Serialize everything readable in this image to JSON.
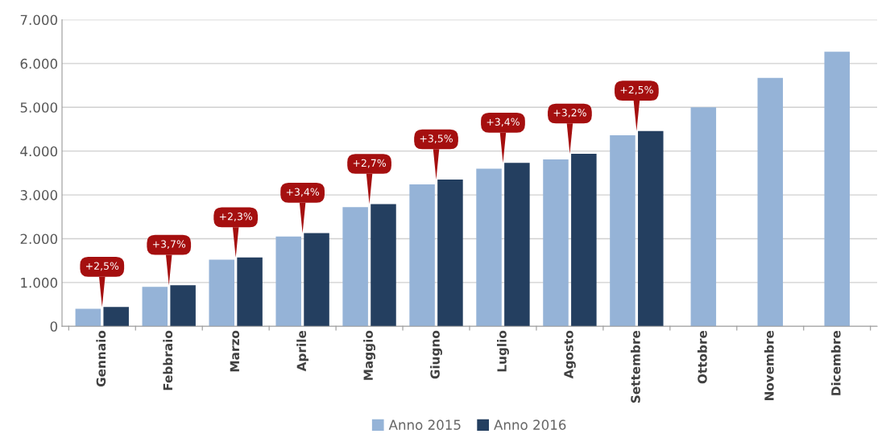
{
  "chart_data": {
    "type": "bar",
    "categories": [
      "Gennaio",
      "Febbraio",
      "Marzo",
      "Aprile",
      "Maggio",
      "Giugno",
      "Luglio",
      "Agosto",
      "Settembre",
      "Ottobre",
      "Novembre",
      "Dicembre"
    ],
    "series": [
      {
        "name": "Anno 2015",
        "color": "#95b3d7",
        "values": [
          400,
          900,
          1520,
          2050,
          2720,
          3240,
          3600,
          3810,
          4360,
          5000,
          5670,
          6270
        ]
      },
      {
        "name": "Anno 2016",
        "color": "#243f60",
        "values": [
          440,
          940,
          1570,
          2130,
          2790,
          3350,
          3730,
          3940,
          4460,
          null,
          null,
          null
        ]
      }
    ],
    "ylim": [
      0,
      7000
    ],
    "yticks": [
      {
        "value": 0,
        "label": "0"
      },
      {
        "value": 1000,
        "label": "1.000"
      },
      {
        "value": 2000,
        "label": "2.000"
      },
      {
        "value": 3000,
        "label": "3.000"
      },
      {
        "value": 4000,
        "label": "4.000"
      },
      {
        "value": 5000,
        "label": "5.000"
      },
      {
        "value": 6000,
        "label": "6.000"
      },
      {
        "value": 7000,
        "label": "7.000"
      }
    ],
    "annotations": [
      {
        "text": "+2,5%",
        "x": "Gennaio",
        "y": 440
      },
      {
        "text": "+3,7%",
        "x": "Febbraio",
        "y": 940
      },
      {
        "text": "+2,3%",
        "x": "Marzo",
        "y": 1570
      },
      {
        "text": "+3,4%",
        "x": "Aprile",
        "y": 2130
      },
      {
        "text": "+2,7%",
        "x": "Maggio",
        "y": 2790
      },
      {
        "text": "+3,5%",
        "x": "Giugno",
        "y": 3350
      },
      {
        "text": "+3,4%",
        "x": "Luglio",
        "y": 3730
      },
      {
        "text": "+3,2%",
        "x": "Agosto",
        "y": 3940
      },
      {
        "text": "+2,5%",
        "x": "Settembre",
        "y": 4460
      }
    ],
    "grid": "y",
    "legend": "bottom"
  }
}
